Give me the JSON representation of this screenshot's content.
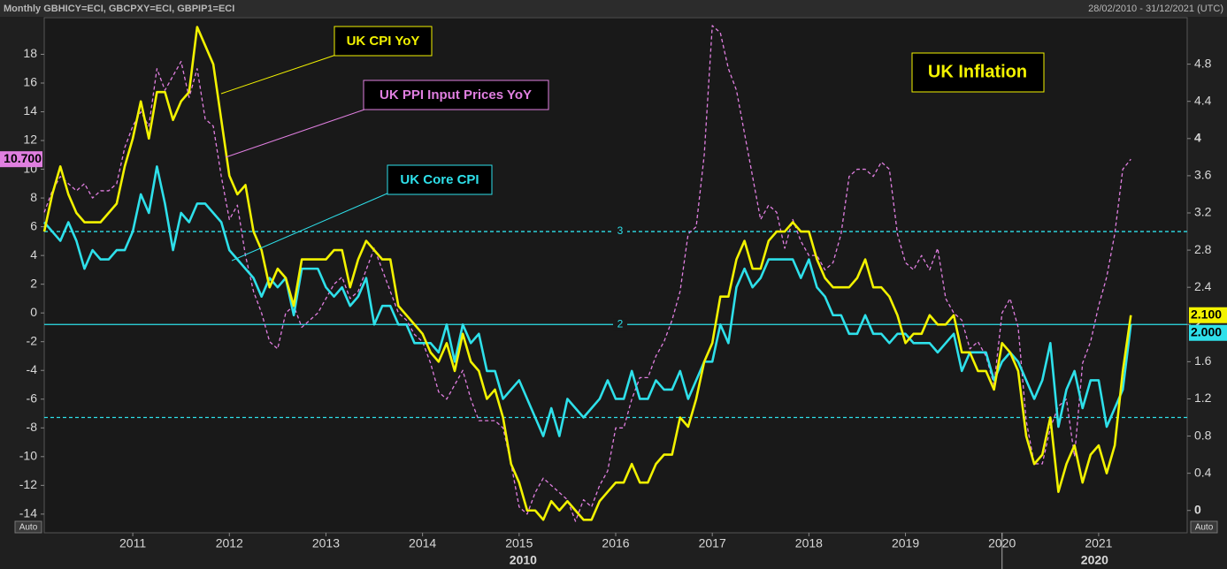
{
  "chart_data": {
    "type": "line",
    "title": "UK Inflation",
    "header_left": "Monthly GBHICY=ECI, GBCPXY=ECI, GBPIP1=ECI",
    "header_right": "28/02/2010 - 31/12/2021 (UTC)",
    "left_axis_mode": "Auto",
    "right_axis_mode": "Auto",
    "x": [
      "2010-02",
      "2010-03",
      "2010-04",
      "2010-05",
      "2010-06",
      "2010-07",
      "2010-08",
      "2010-09",
      "2010-10",
      "2010-11",
      "2010-12",
      "2011-01",
      "2011-02",
      "2011-03",
      "2011-04",
      "2011-05",
      "2011-06",
      "2011-07",
      "2011-08",
      "2011-09",
      "2011-10",
      "2011-11",
      "2011-12",
      "2012-01",
      "2012-02",
      "2012-03",
      "2012-04",
      "2012-05",
      "2012-06",
      "2012-07",
      "2012-08",
      "2012-09",
      "2012-10",
      "2012-11",
      "2012-12",
      "2013-01",
      "2013-02",
      "2013-03",
      "2013-04",
      "2013-05",
      "2013-06",
      "2013-07",
      "2013-08",
      "2013-09",
      "2013-10",
      "2013-11",
      "2013-12",
      "2014-01",
      "2014-02",
      "2014-03",
      "2014-04",
      "2014-05",
      "2014-06",
      "2014-07",
      "2014-08",
      "2014-09",
      "2014-10",
      "2014-11",
      "2014-12",
      "2015-01",
      "2015-02",
      "2015-03",
      "2015-04",
      "2015-05",
      "2015-06",
      "2015-07",
      "2015-08",
      "2015-09",
      "2015-10",
      "2015-11",
      "2015-12",
      "2016-01",
      "2016-02",
      "2016-03",
      "2016-04",
      "2016-05",
      "2016-06",
      "2016-07",
      "2016-08",
      "2016-09",
      "2016-10",
      "2016-11",
      "2016-12",
      "2017-01",
      "2017-02",
      "2017-03",
      "2017-04",
      "2017-05",
      "2017-06",
      "2017-07",
      "2017-08",
      "2017-09",
      "2017-10",
      "2017-11",
      "2017-12",
      "2018-01",
      "2018-02",
      "2018-03",
      "2018-04",
      "2018-05",
      "2018-06",
      "2018-07",
      "2018-08",
      "2018-09",
      "2018-10",
      "2018-11",
      "2018-12",
      "2019-01",
      "2019-02",
      "2019-03",
      "2019-04",
      "2019-05",
      "2019-06",
      "2019-07",
      "2019-08",
      "2019-09",
      "2019-10",
      "2019-11",
      "2019-12",
      "2020-01",
      "2020-02",
      "2020-03",
      "2020-04",
      "2020-05",
      "2020-06",
      "2020-07",
      "2020-08",
      "2020-09",
      "2020-10",
      "2020-11",
      "2020-12",
      "2021-01",
      "2021-02",
      "2021-03",
      "2021-04",
      "2021-05"
    ],
    "xlim": [
      "2010-02",
      "2021-12"
    ],
    "xticks": [
      2011,
      2012,
      2013,
      2014,
      2015,
      2016,
      2017,
      2018,
      2019,
      2020,
      2021
    ],
    "xmajor": [
      2010,
      2020
    ],
    "ylim": [
      -15.3,
      20.55
    ],
    "yticks": [
      -14,
      -12,
      -10,
      -8,
      -6,
      -4,
      -2,
      0,
      2,
      4,
      6,
      8,
      10,
      12,
      14,
      16,
      18
    ],
    "y2lim": [
      -0.24,
      5.3
    ],
    "y2ticks": [
      0,
      0.4,
      0.8,
      1.2,
      1.6,
      2,
      2.4,
      2.8,
      3.2,
      3.6,
      4,
      4.4,
      4.8
    ],
    "hlines": [
      {
        "value": 3,
        "dashed": true,
        "label": "3"
      },
      {
        "value": 2,
        "dashed": false,
        "label": "2"
      },
      {
        "value": 1,
        "dashed": true
      }
    ],
    "series": [
      {
        "name": "UK PPI Input Prices YoY",
        "color": "#e07fe0",
        "dashed": true,
        "tag": "10.700",
        "values": [
          7.0,
          8.5,
          9.5,
          9.0,
          8.5,
          9.0,
          8.0,
          8.5,
          8.5,
          9.0,
          11.5,
          13.0,
          14.0,
          13.0,
          17.0,
          15.5,
          16.5,
          17.5,
          15.0,
          17.0,
          13.5,
          13.0,
          9.5,
          6.5,
          7.5,
          4.0,
          1.5,
          0.0,
          -2.0,
          -2.5,
          0.0,
          0.5,
          -1.0,
          -0.5,
          0.0,
          1.0,
          2.0,
          2.5,
          1.0,
          1.5,
          3.0,
          4.5,
          3.0,
          1.5,
          0.0,
          -0.5,
          -1.5,
          -2.0,
          -3.5,
          -5.5,
          -6.0,
          -5.0,
          -4.0,
          -6.0,
          -7.5,
          -7.5,
          -7.5,
          -8.0,
          -10.5,
          -13.5,
          -14.0,
          -12.5,
          -11.5,
          -12.0,
          -12.5,
          -13.0,
          -14.5,
          -13.0,
          -13.5,
          -12.0,
          -11.0,
          -8.0,
          -8.0,
          -6.0,
          -4.5,
          -4.5,
          -3.0,
          -2.0,
          -0.5,
          1.5,
          5.5,
          6.0,
          11.0,
          20.0,
          19.5,
          17.0,
          15.5,
          12.5,
          9.5,
          6.5,
          7.5,
          7.0,
          4.5,
          6.5,
          5.0,
          4.0,
          4.0,
          3.0,
          3.5,
          5.5,
          9.5,
          10.0,
          10.0,
          9.5,
          10.5,
          10.0,
          5.5,
          3.5,
          3.0,
          4.0,
          3.0,
          4.5,
          1.0,
          0.0,
          -0.5,
          -2.5,
          -2.0,
          -3.0,
          -5.0,
          0.0,
          1.0,
          -1.0,
          -7.5,
          -10.5,
          -10.5,
          -8.0,
          -6.5,
          -6.0,
          -10.0,
          -3.5,
          -2.0,
          0.5,
          2.5,
          5.5,
          10.0,
          10.7
        ]
      },
      {
        "name": "UK Core CPI",
        "color": "#2ee0ea",
        "axis": "y2",
        "dashed": false,
        "tag": "2.000",
        "values": [
          3.1,
          3.0,
          2.9,
          3.1,
          2.9,
          2.6,
          2.8,
          2.7,
          2.7,
          2.8,
          2.8,
          3.0,
          3.4,
          3.2,
          3.7,
          3.3,
          2.8,
          3.2,
          3.1,
          3.3,
          3.3,
          3.2,
          3.1,
          2.8,
          2.7,
          2.6,
          2.5,
          2.3,
          2.5,
          2.4,
          2.5,
          2.1,
          2.6,
          2.6,
          2.6,
          2.4,
          2.3,
          2.4,
          2.2,
          2.3,
          2.5,
          2.0,
          2.2,
          2.2,
          2.0,
          2.0,
          1.8,
          1.8,
          1.8,
          1.7,
          2.0,
          1.6,
          2.0,
          1.8,
          1.9,
          1.5,
          1.5,
          1.2,
          1.3,
          1.4,
          1.2,
          1.0,
          0.8,
          1.1,
          0.8,
          1.2,
          1.1,
          1.0,
          1.1,
          1.2,
          1.4,
          1.2,
          1.2,
          1.5,
          1.2,
          1.2,
          1.4,
          1.3,
          1.3,
          1.5,
          1.2,
          1.4,
          1.6,
          1.6,
          2.0,
          1.8,
          2.4,
          2.6,
          2.4,
          2.5,
          2.7,
          2.7,
          2.7,
          2.7,
          2.5,
          2.7,
          2.4,
          2.3,
          2.1,
          2.1,
          1.9,
          1.9,
          2.1,
          1.9,
          1.9,
          1.8,
          1.9,
          1.9,
          1.8,
          1.8,
          1.8,
          1.7,
          1.8,
          1.9,
          1.5,
          1.7,
          1.7,
          1.7,
          1.4,
          1.6,
          1.7,
          1.6,
          1.4,
          1.2,
          1.4,
          1.8,
          0.9,
          1.3,
          1.5,
          1.1,
          1.4,
          1.4,
          0.9,
          1.1,
          1.3,
          2.0
        ]
      },
      {
        "name": "UK CPI YoY",
        "color": "#f2f200",
        "axis": "y2",
        "dashed": false,
        "tag": "2.100",
        "values": [
          3.0,
          3.4,
          3.7,
          3.4,
          3.2,
          3.1,
          3.1,
          3.1,
          3.2,
          3.3,
          3.7,
          4.0,
          4.4,
          4.0,
          4.5,
          4.5,
          4.2,
          4.4,
          4.5,
          5.2,
          5.0,
          4.8,
          4.2,
          3.6,
          3.4,
          3.5,
          3.0,
          2.8,
          2.4,
          2.6,
          2.5,
          2.2,
          2.7,
          2.7,
          2.7,
          2.7,
          2.8,
          2.8,
          2.4,
          2.7,
          2.9,
          2.8,
          2.7,
          2.7,
          2.2,
          2.1,
          2.0,
          1.9,
          1.7,
          1.6,
          1.8,
          1.5,
          1.9,
          1.6,
          1.5,
          1.2,
          1.3,
          1.0,
          0.5,
          0.3,
          0.0,
          0.0,
          -0.1,
          0.1,
          0.0,
          0.1,
          0.0,
          -0.1,
          -0.1,
          0.1,
          0.2,
          0.3,
          0.3,
          0.5,
          0.3,
          0.3,
          0.5,
          0.6,
          0.6,
          1.0,
          0.9,
          1.2,
          1.6,
          1.8,
          2.3,
          2.3,
          2.7,
          2.9,
          2.6,
          2.6,
          2.9,
          3.0,
          3.0,
          3.1,
          3.0,
          3.0,
          2.7,
          2.5,
          2.4,
          2.4,
          2.4,
          2.5,
          2.7,
          2.4,
          2.4,
          2.3,
          2.1,
          1.8,
          1.9,
          1.9,
          2.1,
          2.0,
          2.0,
          2.1,
          1.7,
          1.7,
          1.5,
          1.5,
          1.3,
          1.8,
          1.7,
          1.5,
          0.8,
          0.5,
          0.6,
          1.0,
          0.2,
          0.5,
          0.7,
          0.3,
          0.6,
          0.7,
          0.4,
          0.7,
          1.5,
          2.1
        ]
      }
    ]
  }
}
